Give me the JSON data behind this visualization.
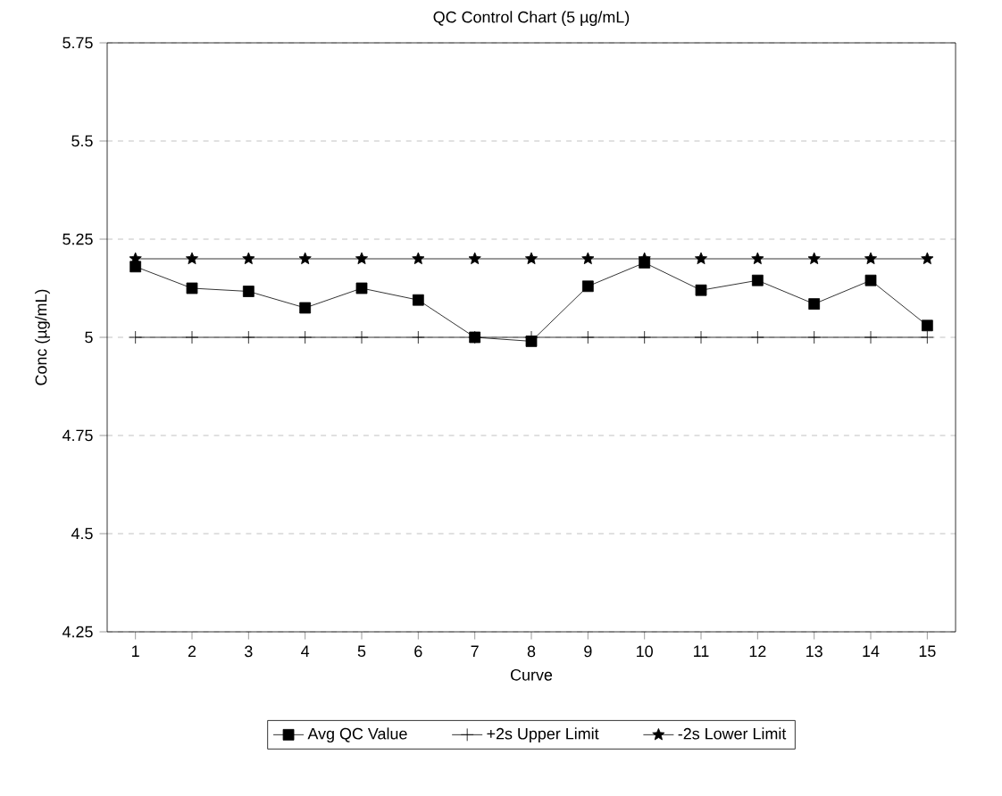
{
  "chart_data": {
    "type": "line",
    "title": "QC Control Chart (5 µg/mL)",
    "xlabel": "Curve",
    "ylabel": "Conc (µg/mL)",
    "categories": [
      "1",
      "2",
      "3",
      "4",
      "5",
      "6",
      "7",
      "8",
      "9",
      "10",
      "11",
      "12",
      "13",
      "14",
      "15"
    ],
    "series": [
      {
        "name": "Avg QC Value",
        "color": "#000000",
        "marker": "square",
        "values": [
          5.18,
          5.125,
          5.117,
          5.075,
          5.125,
          5.095,
          5.0,
          4.99,
          5.13,
          5.19,
          5.12,
          5.145,
          5.085,
          5.145,
          5.03
        ]
      },
      {
        "name": "+2s Upper Limit",
        "color": "#000000",
        "marker": "cross",
        "values": [
          5.0,
          5.0,
          5.0,
          5.0,
          5.0,
          5.0,
          5.0,
          5.0,
          5.0,
          5.0,
          5.0,
          5.0,
          5.0,
          5.0,
          5.0
        ]
      },
      {
        "name": "-2s Lower Limit",
        "color": "#000000",
        "marker": "star",
        "values": [
          5.2,
          5.2,
          5.2,
          5.2,
          5.2,
          5.2,
          5.2,
          5.2,
          5.2,
          5.2,
          5.2,
          5.2,
          5.2,
          5.2,
          5.2
        ]
      }
    ],
    "ylim": [
      4.25,
      5.75
    ],
    "yticks": [
      4.25,
      4.5,
      4.75,
      5,
      5.25,
      5.5,
      5.75
    ],
    "grid": "y",
    "legend": "bottom",
    "line_style": "solid"
  }
}
